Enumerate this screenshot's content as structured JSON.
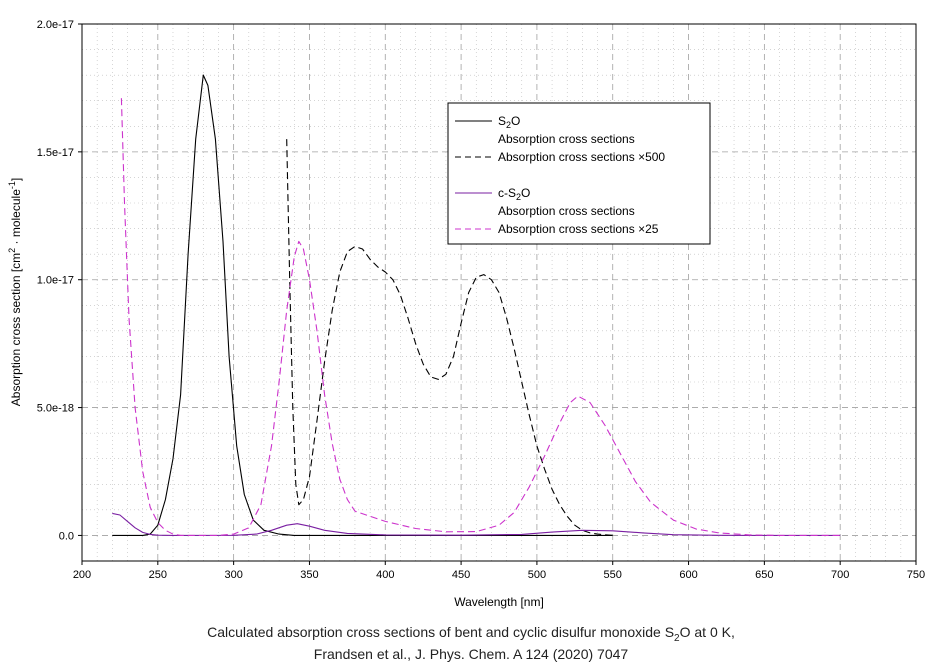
{
  "chart_data": {
    "type": "line",
    "title": "",
    "xlabel": "Wavelength [nm]",
    "ylabel": {
      "prefix": "Absorption cross section [cm",
      "sup1": "2",
      "mid": " · molecule",
      "sup2": "-1",
      "suffix": "]"
    },
    "xlim": [
      200,
      750
    ],
    "ylim": [
      -1e-18,
      2e-17
    ],
    "x_ticks": [
      200,
      250,
      300,
      350,
      400,
      450,
      500,
      550,
      600,
      650,
      700,
      750
    ],
    "x_tick_labels": [
      "200",
      "250",
      "300",
      "350",
      "400",
      "450",
      "500",
      "550",
      "600",
      "650",
      "700",
      "750"
    ],
    "y_ticks": [
      0,
      5e-18,
      1e-17,
      1.5e-17,
      2e-17
    ],
    "y_tick_labels": [
      "0.0",
      "5.0e-18",
      "1.0e-17",
      "1.5e-17",
      "2.0e-17"
    ],
    "grid": true,
    "legend_placement": "top-center",
    "legend": {
      "group1_label": {
        "pre": "S",
        "sub": "2",
        "post": "O"
      },
      "group1_item1": "Absorption cross sections",
      "group1_item2": "Absorption cross sections ×500",
      "group2_label": {
        "pre": "c-S",
        "sub": "2",
        "post": "O"
      },
      "group2_item1": "Absorption cross sections",
      "group2_item2": "Absorption cross sections ×25"
    },
    "series": [
      {
        "color": "#000000",
        "dash": "solid",
        "points": [
          [
            220,
            0
          ],
          [
            240,
            0
          ],
          [
            245,
            5e-20
          ],
          [
            250,
            4e-19
          ],
          [
            255,
            1.4e-18
          ],
          [
            260,
            3e-18
          ],
          [
            265,
            5.5e-18
          ],
          [
            270,
            1.1e-17
          ],
          [
            275,
            1.55e-17
          ],
          [
            280,
            1.8e-17
          ],
          [
            283,
            1.76e-17
          ],
          [
            288,
            1.55e-17
          ],
          [
            293,
            1.15e-17
          ],
          [
            297,
            7e-18
          ],
          [
            302,
            3.5e-18
          ],
          [
            307,
            1.6e-18
          ],
          [
            313,
            6e-19
          ],
          [
            320,
            2e-19
          ],
          [
            330,
            5e-20
          ],
          [
            340,
            0
          ],
          [
            400,
            0
          ],
          [
            500,
            0
          ],
          [
            550,
            0
          ]
        ]
      },
      {
        "color": "#000000",
        "dash": "dashed",
        "points": [
          [
            335,
            1.55e-17
          ],
          [
            337,
            1e-17
          ],
          [
            339,
            5e-18
          ],
          [
            341,
            2e-18
          ],
          [
            343,
            1.2e-18
          ],
          [
            346,
            1.4e-18
          ],
          [
            350,
            2.3e-18
          ],
          [
            355,
            4.5e-18
          ],
          [
            360,
            6.8e-18
          ],
          [
            365,
            8.8e-18
          ],
          [
            370,
            1.03e-17
          ],
          [
            375,
            1.11e-17
          ],
          [
            380,
            1.13e-17
          ],
          [
            385,
            1.12e-17
          ],
          [
            390,
            1.08e-17
          ],
          [
            395,
            1.05e-17
          ],
          [
            400,
            1.03e-17
          ],
          [
            405,
            1e-17
          ],
          [
            410,
            9.4e-18
          ],
          [
            415,
            8.5e-18
          ],
          [
            420,
            7.5e-18
          ],
          [
            425,
            6.7e-18
          ],
          [
            430,
            6.2e-18
          ],
          [
            435,
            6.1e-18
          ],
          [
            440,
            6.3e-18
          ],
          [
            445,
            7e-18
          ],
          [
            450,
            8.3e-18
          ],
          [
            455,
            9.5e-18
          ],
          [
            460,
            1.01e-17
          ],
          [
            465,
            1.02e-17
          ],
          [
            470,
            1e-17
          ],
          [
            475,
            9.5e-18
          ],
          [
            480,
            8.5e-18
          ],
          [
            485,
            7.3e-18
          ],
          [
            490,
            6e-18
          ],
          [
            495,
            4.7e-18
          ],
          [
            500,
            3.5e-18
          ],
          [
            505,
            2.6e-18
          ],
          [
            510,
            1.8e-18
          ],
          [
            515,
            1.2e-18
          ],
          [
            520,
            7.5e-19
          ],
          [
            525,
            4e-19
          ],
          [
            530,
            2e-19
          ],
          [
            535,
            1e-19
          ],
          [
            540,
            5e-20
          ],
          [
            550,
            0
          ]
        ]
      },
      {
        "color": "#7a1fa2",
        "dash": "solid",
        "points": [
          [
            220,
            8.6e-19
          ],
          [
            225,
            8e-19
          ],
          [
            230,
            5.5e-19
          ],
          [
            235,
            3e-19
          ],
          [
            240,
            1.2e-19
          ],
          [
            245,
            4e-20
          ],
          [
            250,
            1e-20
          ],
          [
            260,
            0
          ],
          [
            300,
            5e-21
          ],
          [
            315,
            5e-20
          ],
          [
            325,
            2e-19
          ],
          [
            335,
            4e-19
          ],
          [
            342,
            4.6e-19
          ],
          [
            350,
            3.6e-19
          ],
          [
            360,
            2e-19
          ],
          [
            375,
            8e-20
          ],
          [
            400,
            2e-20
          ],
          [
            450,
            1e-20
          ],
          [
            490,
            4e-20
          ],
          [
            510,
            1.3e-19
          ],
          [
            530,
            2e-19
          ],
          [
            550,
            1.8e-19
          ],
          [
            570,
            1e-19
          ],
          [
            590,
            3e-20
          ],
          [
            620,
            5e-21
          ],
          [
            650,
            0
          ],
          [
            700,
            0
          ]
        ]
      },
      {
        "color": "#cc33cc",
        "dash": "dashed",
        "points": [
          [
            226,
            1.71e-17
          ],
          [
            228,
            1.3e-17
          ],
          [
            231,
            8.5e-18
          ],
          [
            235,
            5e-18
          ],
          [
            240,
            2.5e-18
          ],
          [
            245,
            1.1e-18
          ],
          [
            250,
            5e-19
          ],
          [
            255,
            2e-19
          ],
          [
            260,
            5e-20
          ],
          [
            265,
            0
          ],
          [
            290,
            0
          ],
          [
            300,
            5e-20
          ],
          [
            310,
            3e-19
          ],
          [
            318,
            1.2e-18
          ],
          [
            325,
            3.5e-18
          ],
          [
            330,
            6e-18
          ],
          [
            335,
            8.8e-18
          ],
          [
            340,
            1.09e-17
          ],
          [
            343,
            1.15e-17
          ],
          [
            346,
            1.12e-17
          ],
          [
            350,
            1e-17
          ],
          [
            355,
            8e-18
          ],
          [
            360,
            5.5e-18
          ],
          [
            365,
            3.6e-18
          ],
          [
            370,
            2.2e-18
          ],
          [
            375,
            1.4e-18
          ],
          [
            380,
            9.5e-19
          ],
          [
            390,
            7.5e-19
          ],
          [
            400,
            5.5e-19
          ],
          [
            420,
            2.7e-19
          ],
          [
            440,
            1.4e-19
          ],
          [
            460,
            1.5e-19
          ],
          [
            475,
            4e-19
          ],
          [
            485,
            9e-19
          ],
          [
            495,
            1.9e-18
          ],
          [
            505,
            3.1e-18
          ],
          [
            515,
            4.4e-18
          ],
          [
            522,
            5.2e-18
          ],
          [
            527,
            5.45e-18
          ],
          [
            535,
            5.2e-18
          ],
          [
            545,
            4.3e-18
          ],
          [
            555,
            3.2e-18
          ],
          [
            565,
            2.1e-18
          ],
          [
            575,
            1.3e-18
          ],
          [
            590,
            6e-19
          ],
          [
            605,
            2.5e-19
          ],
          [
            620,
            1e-19
          ],
          [
            640,
            2e-20
          ],
          [
            660,
            0
          ],
          [
            700,
            0
          ]
        ]
      }
    ]
  },
  "caption": {
    "line1_pre": "Calculated absorption cross sections of bent and cyclic disulfur monoxide S",
    "line1_sub": "2",
    "line1_post": "O at 0 K,",
    "line2": "Frandsen et al., J. Phys. Chem. A 124 (2020) 7047"
  }
}
